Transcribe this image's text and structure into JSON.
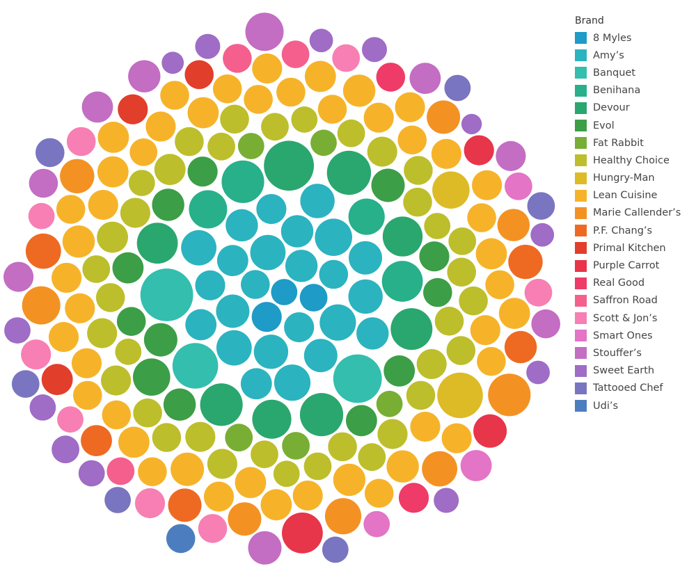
{
  "chart_data": {
    "type": "packed-bubble",
    "legend_title": "Brand",
    "legend_position": "right",
    "categories": [
      {
        "name": "8 Myles",
        "color": "#1E9BC6"
      },
      {
        "name": "Amy’s",
        "color": "#2BB3C0"
      },
      {
        "name": "Banquet",
        "color": "#33BEAE"
      },
      {
        "name": "Benihana",
        "color": "#27B08A"
      },
      {
        "name": "Devour",
        "color": "#2AA76E"
      },
      {
        "name": "Evol",
        "color": "#3C9E47"
      },
      {
        "name": "Fat Rabbit",
        "color": "#78AE34"
      },
      {
        "name": "Healthy Choice",
        "color": "#BDBE2C"
      },
      {
        "name": "Hungry-Man",
        "color": "#DDBB27"
      },
      {
        "name": "Lean Cuisine",
        "color": "#F6B32A"
      },
      {
        "name": "Marie Callender’s",
        "color": "#F39223"
      },
      {
        "name": "P.F. Chang’s",
        "color": "#EE6A22"
      },
      {
        "name": "Primal Kitchen",
        "color": "#E23E2C"
      },
      {
        "name": "Purple Carrot",
        "color": "#E7354A"
      },
      {
        "name": "Real Good",
        "color": "#EE3B68"
      },
      {
        "name": "Saffron Road",
        "color": "#F55F8D"
      },
      {
        "name": "Scott & Jon’s",
        "color": "#F77FB4"
      },
      {
        "name": "Smart Ones",
        "color": "#E474C6"
      },
      {
        "name": "Stouffer’s",
        "color": "#C36DC3"
      },
      {
        "name": "Sweet Earth",
        "color": "#9F6CC6"
      },
      {
        "name": "Tattooed Chef",
        "color": "#7975C1"
      },
      {
        "name": "Udi’s",
        "color": "#4C7EBF"
      }
    ],
    "bubbles": [
      {
        "brand": "8 Myles",
        "size": 1.0
      },
      {
        "brand": "8 Myles",
        "size": 1.1
      },
      {
        "brand": "8 Myles",
        "size": 1.3
      },
      {
        "brand": "Amy’s",
        "size": 1.2
      },
      {
        "brand": "Amy’s",
        "size": 1.5
      },
      {
        "brand": "Amy’s",
        "size": 1.3
      },
      {
        "brand": "Amy’s",
        "size": 1.8
      },
      {
        "brand": "Amy’s",
        "size": 1.6
      },
      {
        "brand": "Amy’s",
        "size": 1.2
      },
      {
        "brand": "Amy’s",
        "size": 1.9
      },
      {
        "brand": "Amy’s",
        "size": 1.7
      },
      {
        "brand": "Amy’s",
        "size": 1.4
      },
      {
        "brand": "Amy’s",
        "size": 1.5
      },
      {
        "brand": "Amy’s",
        "size": 2.0
      },
      {
        "brand": "Amy’s",
        "size": 1.6
      },
      {
        "brand": "Amy’s",
        "size": 1.3
      },
      {
        "brand": "Amy’s",
        "size": 1.8
      },
      {
        "brand": "Amy’s",
        "size": 1.7
      },
      {
        "brand": "Amy’s",
        "size": 1.5
      },
      {
        "brand": "Amy’s",
        "size": 1.4
      },
      {
        "brand": "Amy’s",
        "size": 1.9
      },
      {
        "brand": "Amy’s",
        "size": 1.6
      },
      {
        "brand": "Amy’s",
        "size": 1.3
      },
      {
        "brand": "Amy’s",
        "size": 1.8
      },
      {
        "brand": "Amy’s",
        "size": 1.5
      },
      {
        "brand": "Amy’s",
        "size": 1.7
      },
      {
        "brand": "Amy’s",
        "size": 1.4
      },
      {
        "brand": "Banquet",
        "size": 4.0
      },
      {
        "brand": "Banquet",
        "size": 3.4
      },
      {
        "brand": "Banquet",
        "size": 3.0
      },
      {
        "brand": "Benihana",
        "size": 1.9
      },
      {
        "brand": "Benihana",
        "size": 2.1
      },
      {
        "brand": "Benihana",
        "size": 2.4
      },
      {
        "brand": "Benihana",
        "size": 2.6
      },
      {
        "brand": "Devour",
        "size": 3.6
      },
      {
        "brand": "Devour",
        "size": 2.7
      },
      {
        "brand": "Devour",
        "size": 2.5
      },
      {
        "brand": "Devour",
        "size": 2.6
      },
      {
        "brand": "Devour",
        "size": 2.3
      },
      {
        "brand": "Devour",
        "size": 2.2
      },
      {
        "brand": "Devour",
        "size": 2.4
      },
      {
        "brand": "Devour",
        "size": 2.8
      },
      {
        "brand": "Evol",
        "size": 1.6
      },
      {
        "brand": "Evol",
        "size": 1.4
      },
      {
        "brand": "Evol",
        "size": 1.5
      },
      {
        "brand": "Evol",
        "size": 1.3
      },
      {
        "brand": "Evol",
        "size": 1.6
      },
      {
        "brand": "Evol",
        "size": 1.2
      },
      {
        "brand": "Evol",
        "size": 1.4
      },
      {
        "brand": "Evol",
        "size": 2.0
      },
      {
        "brand": "Evol",
        "size": 1.3
      },
      {
        "brand": "Evol",
        "size": 1.5
      },
      {
        "brand": "Evol",
        "size": 1.2
      },
      {
        "brand": "Evol",
        "size": 1.4
      },
      {
        "brand": "Fat Rabbit",
        "size": 1.0
      },
      {
        "brand": "Fat Rabbit",
        "size": 1.1
      },
      {
        "brand": "Fat Rabbit",
        "size": 1.0
      },
      {
        "brand": "Fat Rabbit",
        "size": 1.1
      },
      {
        "brand": "Fat Rabbit",
        "size": 1.0
      },
      {
        "brand": "Healthy Choice",
        "size": 1.3
      },
      {
        "brand": "Healthy Choice",
        "size": 1.2
      },
      {
        "brand": "Healthy Choice",
        "size": 1.1
      },
      {
        "brand": "Healthy Choice",
        "size": 1.2
      },
      {
        "brand": "Healthy Choice",
        "size": 1.3
      },
      {
        "brand": "Healthy Choice",
        "size": 1.0
      },
      {
        "brand": "Healthy Choice",
        "size": 1.4
      },
      {
        "brand": "Healthy Choice",
        "size": 1.2
      },
      {
        "brand": "Healthy Choice",
        "size": 1.1
      },
      {
        "brand": "Healthy Choice",
        "size": 1.3
      },
      {
        "brand": "Healthy Choice",
        "size": 1.2
      },
      {
        "brand": "Healthy Choice",
        "size": 1.0
      },
      {
        "brand": "Healthy Choice",
        "size": 1.2
      },
      {
        "brand": "Healthy Choice",
        "size": 1.1
      },
      {
        "brand": "Healthy Choice",
        "size": 1.3
      },
      {
        "brand": "Healthy Choice",
        "size": 1.2
      },
      {
        "brand": "Healthy Choice",
        "size": 1.4
      },
      {
        "brand": "Healthy Choice",
        "size": 1.1
      },
      {
        "brand": "Healthy Choice",
        "size": 1.2
      },
      {
        "brand": "Healthy Choice",
        "size": 1.0
      },
      {
        "brand": "Healthy Choice",
        "size": 1.3
      },
      {
        "brand": "Healthy Choice",
        "size": 1.2
      },
      {
        "brand": "Healthy Choice",
        "size": 1.1
      },
      {
        "brand": "Healthy Choice",
        "size": 1.2
      },
      {
        "brand": "Healthy Choice",
        "size": 1.3
      },
      {
        "brand": "Healthy Choice",
        "size": 1.0
      },
      {
        "brand": "Healthy Choice",
        "size": 1.2
      },
      {
        "brand": "Healthy Choice",
        "size": 1.1
      },
      {
        "brand": "Healthy Choice",
        "size": 1.2
      },
      {
        "brand": "Healthy Choice",
        "size": 1.3
      },
      {
        "brand": "Healthy Choice",
        "size": 1.2
      },
      {
        "brand": "Healthy Choice",
        "size": 1.1
      },
      {
        "brand": "Healthy Choice",
        "size": 1.0
      },
      {
        "brand": "Healthy Choice",
        "size": 1.2
      },
      {
        "brand": "Healthy Choice",
        "size": 1.3
      },
      {
        "brand": "Healthy Choice",
        "size": 1.1
      },
      {
        "brand": "Hungry-Man",
        "size": 2.0
      },
      {
        "brand": "Hungry-Man",
        "size": 3.0
      },
      {
        "brand": "Lean Cuisine",
        "size": 1.3
      },
      {
        "brand": "Lean Cuisine",
        "size": 1.2
      },
      {
        "brand": "Lean Cuisine",
        "size": 1.4
      },
      {
        "brand": "Lean Cuisine",
        "size": 1.3
      },
      {
        "brand": "Lean Cuisine",
        "size": 1.2
      },
      {
        "brand": "Lean Cuisine",
        "size": 1.5
      },
      {
        "brand": "Lean Cuisine",
        "size": 1.3
      },
      {
        "brand": "Lean Cuisine",
        "size": 1.1
      },
      {
        "brand": "Lean Cuisine",
        "size": 1.4
      },
      {
        "brand": "Lean Cuisine",
        "size": 1.3
      },
      {
        "brand": "Lean Cuisine",
        "size": 1.2
      },
      {
        "brand": "Lean Cuisine",
        "size": 1.6
      },
      {
        "brand": "Lean Cuisine",
        "size": 1.3
      },
      {
        "brand": "Lean Cuisine",
        "size": 1.2
      },
      {
        "brand": "Lean Cuisine",
        "size": 1.4
      },
      {
        "brand": "Lean Cuisine",
        "size": 1.3
      },
      {
        "brand": "Lean Cuisine",
        "size": 1.5
      },
      {
        "brand": "Lean Cuisine",
        "size": 1.2
      },
      {
        "brand": "Lean Cuisine",
        "size": 1.3
      },
      {
        "brand": "Lean Cuisine",
        "size": 1.4
      },
      {
        "brand": "Lean Cuisine",
        "size": 1.2
      },
      {
        "brand": "Lean Cuisine",
        "size": 1.3
      },
      {
        "brand": "Lean Cuisine",
        "size": 1.5
      },
      {
        "brand": "Lean Cuisine",
        "size": 1.2
      },
      {
        "brand": "Lean Cuisine",
        "size": 1.3
      },
      {
        "brand": "Lean Cuisine",
        "size": 1.4
      },
      {
        "brand": "Lean Cuisine",
        "size": 1.2
      },
      {
        "brand": "Lean Cuisine",
        "size": 1.3
      },
      {
        "brand": "Lean Cuisine",
        "size": 1.2
      },
      {
        "brand": "Lean Cuisine",
        "size": 1.4
      },
      {
        "brand": "Lean Cuisine",
        "size": 1.3
      },
      {
        "brand": "Lean Cuisine",
        "size": 1.5
      },
      {
        "brand": "Lean Cuisine",
        "size": 1.2
      },
      {
        "brand": "Lean Cuisine",
        "size": 1.3
      },
      {
        "brand": "Lean Cuisine",
        "size": 1.4
      },
      {
        "brand": "Lean Cuisine",
        "size": 1.2
      },
      {
        "brand": "Lean Cuisine",
        "size": 1.3
      },
      {
        "brand": "Lean Cuisine",
        "size": 1.2
      },
      {
        "brand": "Lean Cuisine",
        "size": 1.4
      },
      {
        "brand": "Lean Cuisine",
        "size": 1.3
      },
      {
        "brand": "Lean Cuisine",
        "size": 1.2
      },
      {
        "brand": "Lean Cuisine",
        "size": 1.3
      },
      {
        "brand": "Lean Cuisine",
        "size": 1.4
      },
      {
        "brand": "Lean Cuisine",
        "size": 1.2
      },
      {
        "brand": "Lean Cuisine",
        "size": 1.3
      },
      {
        "brand": "Marie Callender’s",
        "size": 1.9
      },
      {
        "brand": "Marie Callender’s",
        "size": 1.7
      },
      {
        "brand": "Marie Callender’s",
        "size": 2.1
      },
      {
        "brand": "Marie Callender’s",
        "size": 1.6
      },
      {
        "brand": "Marie Callender’s",
        "size": 1.5
      },
      {
        "brand": "Marie Callender’s",
        "size": 1.8
      },
      {
        "brand": "Marie Callender’s",
        "size": 1.6
      },
      {
        "brand": "Marie Callender’s",
        "size": 2.6
      },
      {
        "brand": "P.F. Chang’s",
        "size": 1.8
      },
      {
        "brand": "P.F. Chang’s",
        "size": 1.5
      },
      {
        "brand": "P.F. Chang’s",
        "size": 1.6
      },
      {
        "brand": "P.F. Chang’s",
        "size": 1.7
      },
      {
        "brand": "P.F. Chang’s",
        "size": 1.4
      },
      {
        "brand": "Primal Kitchen",
        "size": 1.4
      },
      {
        "brand": "Primal Kitchen",
        "size": 1.3
      },
      {
        "brand": "Primal Kitchen",
        "size": 1.2
      },
      {
        "brand": "Purple Carrot",
        "size": 1.3
      },
      {
        "brand": "Purple Carrot",
        "size": 2.4
      },
      {
        "brand": "Purple Carrot",
        "size": 1.6
      },
      {
        "brand": "Real Good",
        "size": 1.2
      },
      {
        "brand": "Real Good",
        "size": 1.3
      },
      {
        "brand": "Saffron Road",
        "size": 1.1
      },
      {
        "brand": "Saffron Road",
        "size": 1.2
      },
      {
        "brand": "Saffron Road",
        "size": 1.1
      },
      {
        "brand": "Scott & Jon’s",
        "size": 1.1
      },
      {
        "brand": "Scott & Jon’s",
        "size": 1.0
      },
      {
        "brand": "Scott & Jon’s",
        "size": 1.3
      },
      {
        "brand": "Scott & Jon’s",
        "size": 1.2
      },
      {
        "brand": "Scott & Jon’s",
        "size": 1.1
      },
      {
        "brand": "Scott & Jon’s",
        "size": 1.3
      },
      {
        "brand": "Scott & Jon’s",
        "size": 1.0
      },
      {
        "brand": "Scott & Jon’s",
        "size": 1.2
      },
      {
        "brand": "Smart Ones",
        "size": 1.1
      },
      {
        "brand": "Smart Ones",
        "size": 1.0
      },
      {
        "brand": "Smart Ones",
        "size": 1.4
      },
      {
        "brand": "Stouffer’s",
        "size": 1.5
      },
      {
        "brand": "Stouffer’s",
        "size": 1.4
      },
      {
        "brand": "Stouffer’s",
        "size": 1.2
      },
      {
        "brand": "Stouffer’s",
        "size": 1.3
      },
      {
        "brand": "Stouffer’s",
        "size": 1.6
      },
      {
        "brand": "Stouffer’s",
        "size": 1.4
      },
      {
        "brand": "Stouffer’s",
        "size": 2.1
      },
      {
        "brand": "Stouffer’s",
        "size": 1.3
      },
      {
        "brand": "Stouffer’s",
        "size": 1.2
      },
      {
        "brand": "Sweet Earth",
        "size": 0.6
      },
      {
        "brand": "Sweet Earth",
        "size": 0.8
      },
      {
        "brand": "Sweet Earth",
        "size": 0.7
      },
      {
        "brand": "Sweet Earth",
        "size": 0.9
      },
      {
        "brand": "Sweet Earth",
        "size": 0.8
      },
      {
        "brand": "Sweet Earth",
        "size": 0.9
      },
      {
        "brand": "Sweet Earth",
        "size": 1.0
      },
      {
        "brand": "Sweet Earth",
        "size": 0.8
      },
      {
        "brand": "Sweet Earth",
        "size": 1.0
      },
      {
        "brand": "Sweet Earth",
        "size": 0.9
      },
      {
        "brand": "Sweet Earth",
        "size": 1.0
      },
      {
        "brand": "Sweet Earth",
        "size": 1.1
      },
      {
        "brand": "Tattooed Chef",
        "size": 1.0
      },
      {
        "brand": "Tattooed Chef",
        "size": 1.1
      },
      {
        "brand": "Tattooed Chef",
        "size": 1.0
      },
      {
        "brand": "Tattooed Chef",
        "size": 1.2
      },
      {
        "brand": "Tattooed Chef",
        "size": 1.1
      },
      {
        "brand": "Tattooed Chef",
        "size": 1.0
      },
      {
        "brand": "Udi’s",
        "size": 1.2
      }
    ]
  }
}
